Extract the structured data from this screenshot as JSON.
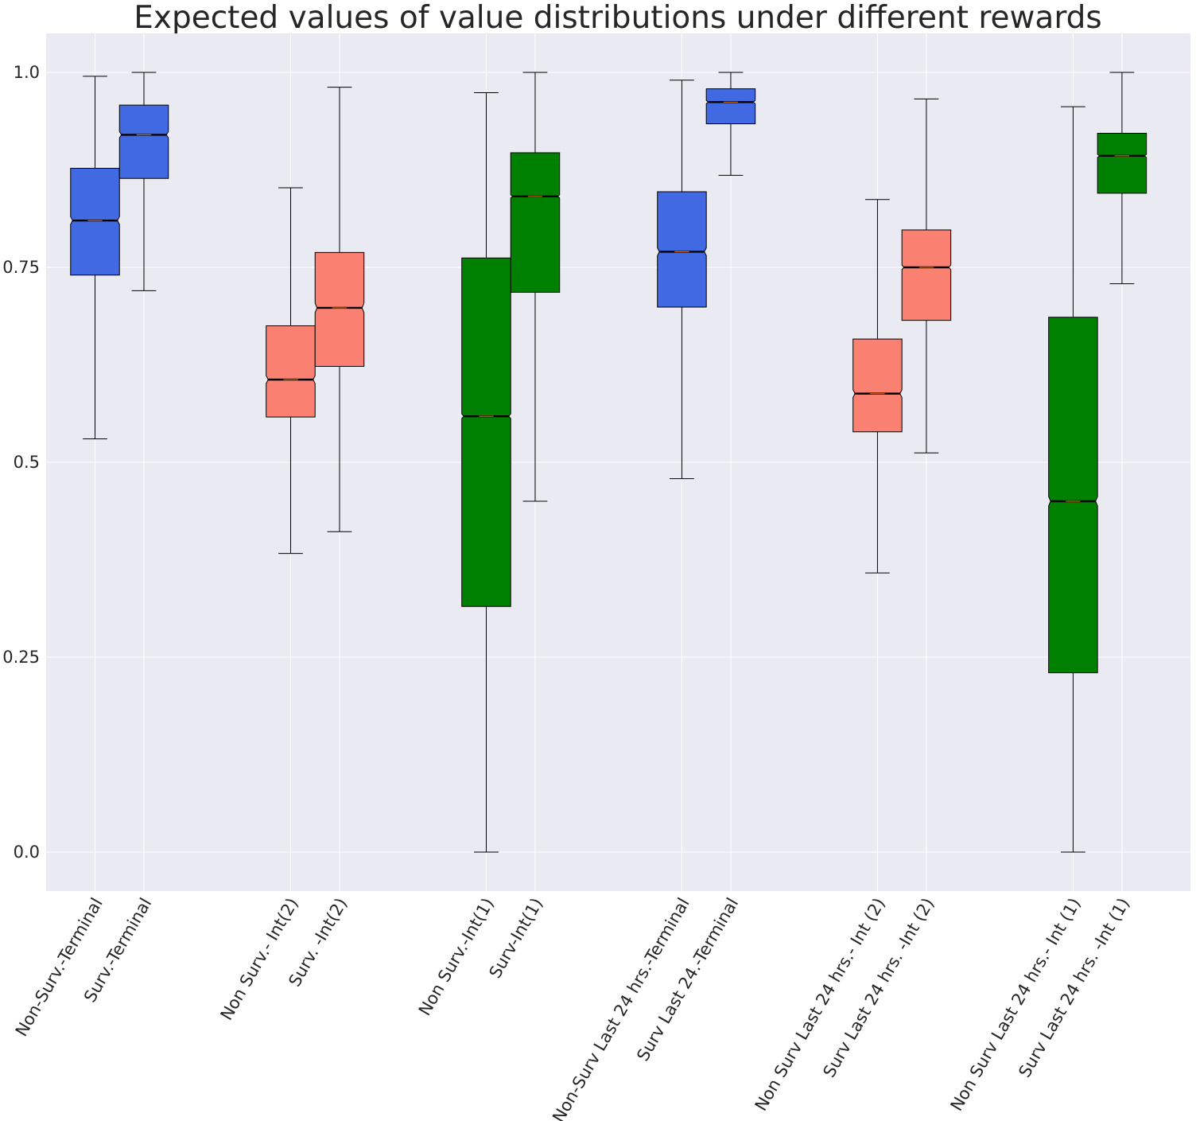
{
  "chart_data": {
    "type": "boxplot",
    "title": "Expected values of value distributions under different rewards",
    "xlabel": "",
    "ylabel": "",
    "ylim": [
      -0.05,
      1.05
    ],
    "y_ticks": [
      0.0,
      0.25,
      0.5,
      0.75,
      1.0
    ],
    "y_tick_labels": [
      "0.0",
      "0.25",
      "0.5",
      "0.75",
      "1.0"
    ],
    "grid": true,
    "notched": true,
    "colors": {
      "terminal": "#4169e1",
      "int2": "#fa8072",
      "int1": "#008000",
      "background": "#eaeaf2",
      "median": "#ff7f0e"
    },
    "boxes": [
      {
        "label": "Non-Surv.-Terminal",
        "x": 1,
        "color": "#4169e1",
        "whislo": 0.53,
        "q1": 0.74,
        "med": 0.81,
        "q3": 0.877,
        "whishi": 0.995,
        "notch_lo": 0.805,
        "notch_hi": 0.815
      },
      {
        "label": "Surv.-Terminal",
        "x": 2,
        "color": "#4169e1",
        "whislo": 0.72,
        "q1": 0.864,
        "med": 0.92,
        "q3": 0.958,
        "whishi": 1.0,
        "notch_lo": 0.916,
        "notch_hi": 0.924
      },
      {
        "label": "Non Surv.- Int(2)",
        "x": 5,
        "color": "#fa8072",
        "whislo": 0.383,
        "q1": 0.558,
        "med": 0.606,
        "q3": 0.675,
        "whishi": 0.852,
        "notch_lo": 0.601,
        "notch_hi": 0.611
      },
      {
        "label": "Surv. -Int(2)",
        "x": 6,
        "color": "#fa8072",
        "whislo": 0.411,
        "q1": 0.623,
        "med": 0.698,
        "q3": 0.769,
        "whishi": 0.981,
        "notch_lo": 0.692,
        "notch_hi": 0.704
      },
      {
        "label": "Non Surv.-Int(1)",
        "x": 9,
        "color": "#008000",
        "whislo": 0.0,
        "q1": 0.315,
        "med": 0.559,
        "q3": 0.762,
        "whishi": 0.974,
        "notch_lo": 0.556,
        "notch_hi": 0.562
      },
      {
        "label": "Surv-Int(1)",
        "x": 10,
        "color": "#008000",
        "whislo": 0.45,
        "q1": 0.718,
        "med": 0.841,
        "q3": 0.897,
        "whishi": 1.0,
        "notch_lo": 0.839,
        "notch_hi": 0.843
      },
      {
        "label": "Non-Surv Last 24 hrs.-Terminal",
        "x": 13,
        "color": "#4169e1",
        "whislo": 0.479,
        "q1": 0.699,
        "med": 0.77,
        "q3": 0.847,
        "whishi": 0.99,
        "notch_lo": 0.765,
        "notch_hi": 0.775
      },
      {
        "label": "Surv Last 24.-Terminal",
        "x": 14,
        "color": "#4169e1",
        "whislo": 0.868,
        "q1": 0.934,
        "med": 0.962,
        "q3": 0.979,
        "whishi": 1.0,
        "notch_lo": 0.96,
        "notch_hi": 0.964
      },
      {
        "label": "Non Surv Last 24 hrs.- Int (2)",
        "x": 17,
        "color": "#fa8072",
        "whislo": 0.358,
        "q1": 0.539,
        "med": 0.588,
        "q3": 0.658,
        "whishi": 0.837,
        "notch_lo": 0.583,
        "notch_hi": 0.593
      },
      {
        "label": "Surv Last 24 hrs. -Int (2)",
        "x": 18,
        "color": "#fa8072",
        "whislo": 0.512,
        "q1": 0.682,
        "med": 0.75,
        "q3": 0.798,
        "whishi": 0.966,
        "notch_lo": 0.747,
        "notch_hi": 0.753
      },
      {
        "label": "Non Surv Last 24 hrs.- Int (1)",
        "x": 21,
        "color": "#008000",
        "whislo": 0.0,
        "q1": 0.23,
        "med": 0.45,
        "q3": 0.686,
        "whishi": 0.956,
        "notch_lo": 0.444,
        "notch_hi": 0.456
      },
      {
        "label": "Surv Last 24 hrs. -Int (1)",
        "x": 22,
        "color": "#008000",
        "whislo": 0.729,
        "q1": 0.845,
        "med": 0.893,
        "q3": 0.922,
        "whishi": 1.0,
        "notch_lo": 0.891,
        "notch_hi": 0.895
      }
    ]
  }
}
